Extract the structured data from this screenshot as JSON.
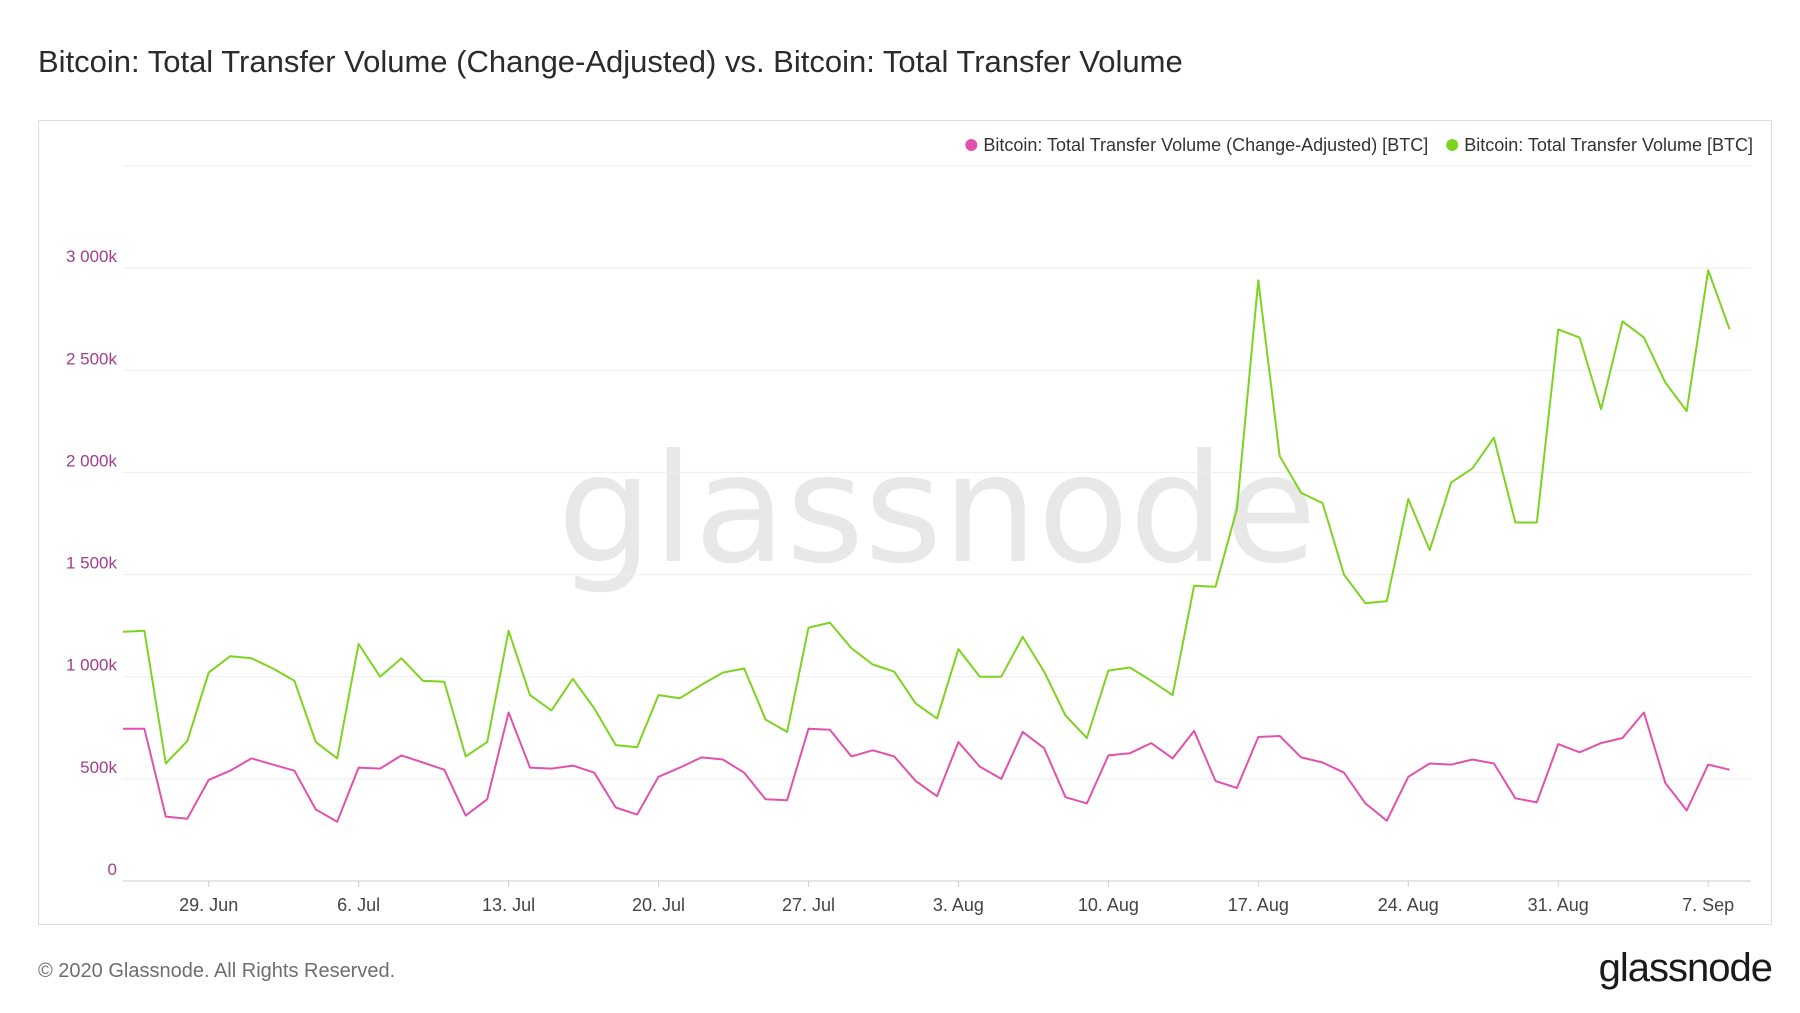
{
  "title": "Bitcoin: Total Transfer Volume (Change-Adjusted) vs. Bitcoin: Total Transfer Volume",
  "watermark": "glassnode",
  "footer": "© 2020 Glassnode. All Rights Reserved.",
  "brand": "glassnode",
  "colors": {
    "adjusted": "#e052ad",
    "total": "#7ed321",
    "axis_text": "#a0408a",
    "grid": "#eeeeee",
    "watermark": "#e8e8e8"
  },
  "chart_data": {
    "type": "line",
    "x_start": "2020-06-25",
    "x_end": "2020-09-09",
    "x_ticks": [
      {
        "date": "2020-06-29",
        "label": "29. Jun"
      },
      {
        "date": "2020-07-06",
        "label": "6. Jul"
      },
      {
        "date": "2020-07-13",
        "label": "13. Jul"
      },
      {
        "date": "2020-07-20",
        "label": "20. Jul"
      },
      {
        "date": "2020-07-27",
        "label": "27. Jul"
      },
      {
        "date": "2020-08-03",
        "label": "3. Aug"
      },
      {
        "date": "2020-08-10",
        "label": "10. Aug"
      },
      {
        "date": "2020-08-17",
        "label": "17. Aug"
      },
      {
        "date": "2020-08-24",
        "label": "24. Aug"
      },
      {
        "date": "2020-08-31",
        "label": "31. Aug"
      },
      {
        "date": "2020-09-07",
        "label": "7. Sep"
      }
    ],
    "y_ticks": [
      {
        "value": 0,
        "label": "0"
      },
      {
        "value": 500,
        "label": "500k"
      },
      {
        "value": 1000,
        "label": "1 000k"
      },
      {
        "value": 1500,
        "label": "1 500k"
      },
      {
        "value": 2000,
        "label": "2 000k"
      },
      {
        "value": 2500,
        "label": "2 500k"
      },
      {
        "value": 3000,
        "label": "3 000k"
      }
    ],
    "ylim": [
      0,
      3500
    ],
    "grid": true,
    "legend_position": "top-right",
    "series": [
      {
        "name": "Bitcoin: Total Transfer Volume (Change-Adjusted) [BTC]",
        "color": "#e052ad",
        "values": [
          745,
          745,
          315,
          305,
          495,
          540,
          600,
          570,
          540,
          350,
          290,
          555,
          550,
          615,
          580,
          545,
          320,
          400,
          825,
          555,
          550,
          565,
          530,
          360,
          325,
          510,
          555,
          605,
          595,
          530,
          400,
          395,
          745,
          740,
          610,
          640,
          610,
          490,
          415,
          680,
          560,
          500,
          730,
          650,
          410,
          380,
          615,
          625,
          675,
          600,
          735,
          490,
          455,
          705,
          710,
          605,
          580,
          530,
          380,
          295,
          510,
          575,
          570,
          595,
          575,
          405,
          385,
          670,
          630,
          675,
          700,
          825,
          480,
          345,
          570,
          545
        ]
      },
      {
        "name": "Bitcoin: Total Transfer Volume [BTC]",
        "color": "#7ed321",
        "values": [
          1220,
          1225,
          575,
          685,
          1020,
          1100,
          1090,
          1040,
          980,
          680,
          600,
          1160,
          1000,
          1090,
          980,
          975,
          610,
          680,
          1225,
          910,
          835,
          990,
          845,
          665,
          655,
          910,
          895,
          960,
          1020,
          1040,
          790,
          730,
          1240,
          1265,
          1140,
          1060,
          1025,
          870,
          795,
          1135,
          1000,
          1000,
          1195,
          1025,
          810,
          700,
          1030,
          1045,
          980,
          910,
          1445,
          1440,
          1820,
          2940,
          2080,
          1900,
          1850,
          1500,
          1360,
          1370,
          1870,
          1620,
          1950,
          2020,
          2170,
          1755,
          1755,
          2700,
          2660,
          2310,
          2740,
          2660,
          2440,
          2300,
          2990,
          2700
        ]
      }
    ]
  }
}
